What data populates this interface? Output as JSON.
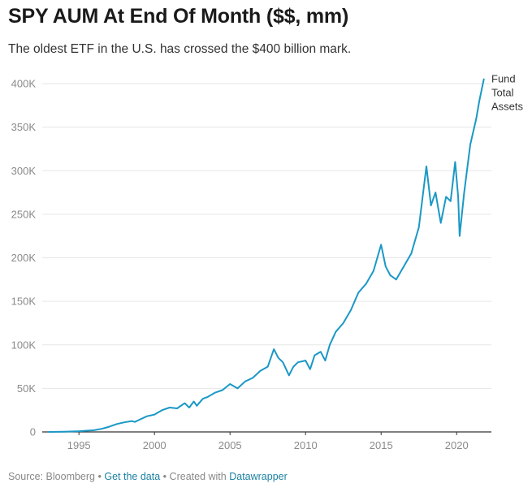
{
  "header": {
    "title": "SPY AUM At End Of Month ($$, mm)",
    "subtitle": "The oldest ETF in the U.S. has crossed the $400 billion mark."
  },
  "footer": {
    "source_label": "Source: Bloomberg",
    "separator": "•",
    "get_data_label": "Get the data",
    "created_with_label": "Created with",
    "datawrapper_label": "Datawrapper"
  },
  "colors": {
    "line": "#1a98c6",
    "grid": "#e6e6e6",
    "baseline": "#333333",
    "link": "#1d81a2"
  },
  "chart_data": {
    "type": "line",
    "title": "SPY AUM At End Of Month ($$, mm)",
    "subtitle": "The oldest ETF in the U.S. has crossed the $400 billion mark.",
    "xlabel": "",
    "ylabel": "",
    "xlim": [
      1993.0,
      2022.3
    ],
    "ylim": [
      0,
      400000
    ],
    "x_ticks": [
      1995,
      2000,
      2005,
      2010,
      2015,
      2020
    ],
    "x_tick_labels": [
      "1995",
      "2000",
      "2005",
      "2010",
      "2015",
      "2020"
    ],
    "y_ticks": [
      0,
      50000,
      100000,
      150000,
      200000,
      250000,
      300000,
      350000,
      400000
    ],
    "y_tick_labels": [
      "0",
      "50K",
      "100K",
      "150K",
      "200K",
      "250K",
      "300K",
      "350K",
      "400K"
    ],
    "grid": true,
    "legend": "direct label at end of line",
    "series": [
      {
        "name": "Fund Total Assets",
        "label_lines": [
          "Fund",
          "Total",
          "Assets"
        ],
        "x": [
          1993.0,
          1994.0,
          1995.0,
          1996.0,
          1996.5,
          1997.0,
          1997.5,
          1998.0,
          1998.5,
          1998.7,
          1999.0,
          1999.5,
          2000.0,
          2000.5,
          2001.0,
          2001.5,
          2002.0,
          2002.3,
          2002.6,
          2002.8,
          2003.2,
          2003.5,
          2004.0,
          2004.5,
          2005.0,
          2005.5,
          2006.0,
          2006.5,
          2007.0,
          2007.5,
          2007.9,
          2008.2,
          2008.5,
          2008.9,
          2009.2,
          2009.5,
          2010.0,
          2010.3,
          2010.6,
          2011.0,
          2011.3,
          2011.6,
          2012.0,
          2012.5,
          2013.0,
          2013.5,
          2014.0,
          2014.5,
          2015.0,
          2015.3,
          2015.6,
          2016.0,
          2016.5,
          2017.0,
          2017.5,
          2018.0,
          2018.3,
          2018.6,
          2018.95,
          2019.3,
          2019.6,
          2019.9,
          2020.1,
          2020.2,
          2020.5,
          2020.9,
          2021.3,
          2021.5,
          2021.8
        ],
        "y": [
          0,
          300,
          800,
          2000,
          3500,
          6000,
          9000,
          11000,
          12500,
          11500,
          14000,
          18000,
          20000,
          25000,
          28000,
          27000,
          33000,
          28000,
          35000,
          30000,
          38000,
          40000,
          45000,
          48000,
          55000,
          50000,
          58000,
          62000,
          70000,
          75000,
          95000,
          85000,
          80000,
          65000,
          75000,
          80000,
          82000,
          72000,
          88000,
          92000,
          82000,
          100000,
          115000,
          125000,
          140000,
          160000,
          170000,
          185000,
          215000,
          190000,
          180000,
          175000,
          190000,
          205000,
          235000,
          305000,
          260000,
          275000,
          240000,
          270000,
          265000,
          310000,
          270000,
          225000,
          275000,
          330000,
          360000,
          380000,
          405000
        ]
      }
    ]
  }
}
